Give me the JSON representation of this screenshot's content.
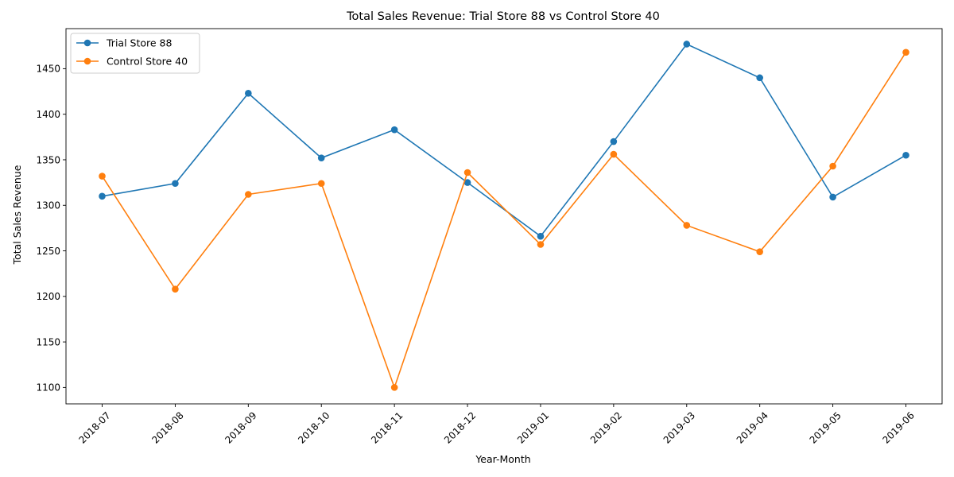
{
  "chart_data": {
    "type": "line",
    "title": "Total Sales Revenue: Trial Store 88 vs Control Store 40",
    "xlabel": "Year-Month",
    "ylabel": "Total Sales Revenue",
    "categories": [
      "2018-07",
      "2018-08",
      "2018-09",
      "2018-10",
      "2018-11",
      "2018-12",
      "2019-01",
      "2019-02",
      "2019-03",
      "2019-04",
      "2019-05",
      "2019-06"
    ],
    "series": [
      {
        "name": "Trial Store 88",
        "color": "#1f77b4",
        "values": [
          1310,
          1324,
          1423,
          1352,
          1383,
          1325,
          1266,
          1370,
          1477,
          1440,
          1309,
          1355
        ]
      },
      {
        "name": "Control Store 40",
        "color": "#ff7f0e",
        "values": [
          1332,
          1208,
          1312,
          1324,
          1100,
          1336,
          1257,
          1356,
          1278,
          1249,
          1343,
          1468
        ]
      }
    ],
    "ylim": [
      1082,
      1494
    ],
    "yticks": [
      1100,
      1150,
      1200,
      1250,
      1300,
      1350,
      1400,
      1450
    ],
    "x_tick_rotation": 45,
    "grid": false,
    "legend_position": "upper left",
    "marker": "circle"
  }
}
